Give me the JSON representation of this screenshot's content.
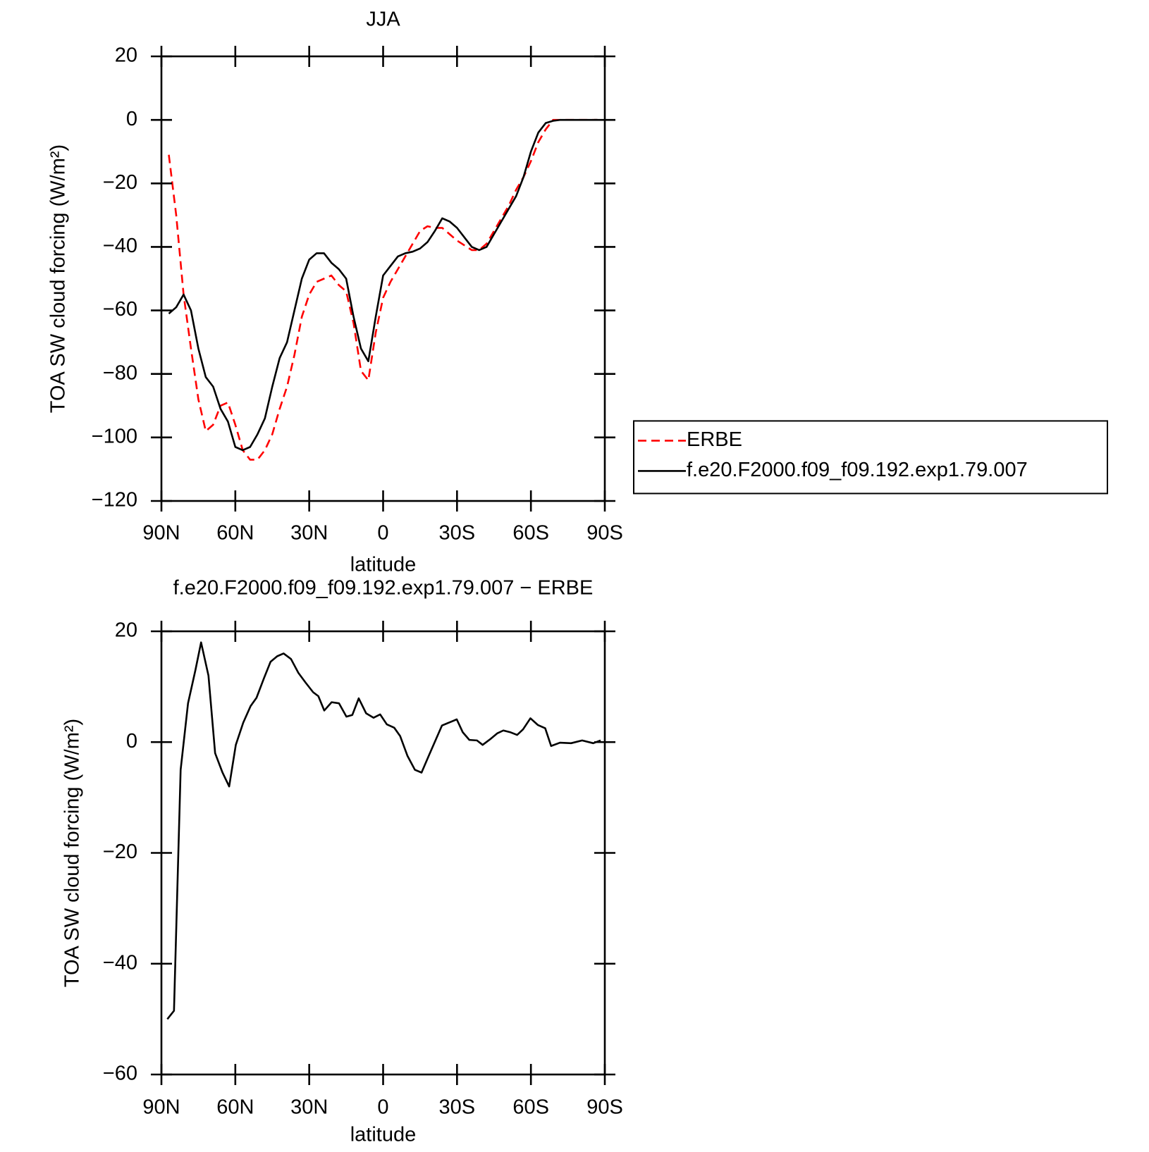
{
  "chart_data": [
    {
      "type": "line",
      "title": "JJA",
      "xlabel": "latitude",
      "ylabel": "TOA SW cloud forcing (W/m²)",
      "xlim": [
        90,
        -90
      ],
      "xticks": [
        {
          "value": 90,
          "label": "90N"
        },
        {
          "value": 60,
          "label": "60N"
        },
        {
          "value": 30,
          "label": "30N"
        },
        0,
        {
          "value": -30,
          "label": "30S"
        },
        {
          "value": -60,
          "label": "60S"
        },
        {
          "value": -90,
          "label": "90S"
        }
      ],
      "ylim": [
        -120,
        20
      ],
      "yticks": [
        20,
        0,
        {
          "value": -20,
          "label": "−20"
        },
        {
          "value": -40,
          "label": "−40"
        },
        {
          "value": -60,
          "label": "−60"
        },
        {
          "value": -80,
          "label": "−80"
        },
        {
          "value": -100,
          "label": "−100"
        },
        {
          "value": -120,
          "label": "−120"
        }
      ],
      "legend": "right",
      "x": [
        87,
        84,
        81,
        78,
        75,
        72,
        69,
        66,
        63,
        60,
        57,
        54,
        51,
        48,
        45,
        42,
        39,
        36,
        33,
        30,
        27,
        24,
        21,
        18,
        15,
        12,
        9,
        6,
        3,
        0,
        -3,
        -6,
        -9,
        -12,
        -15,
        -18,
        -21,
        -24,
        -27,
        -30,
        -33,
        -36,
        -39,
        -42,
        -45,
        -48,
        -51,
        -54,
        -57,
        -60,
        -63,
        -66,
        -69,
        -72,
        -75,
        -78,
        -81,
        -84,
        -87
      ],
      "series": [
        {
          "name": "ERBE",
          "color": "#ff0000",
          "line_style": "dashed",
          "values": [
            -11,
            -30,
            -55,
            -72,
            -88,
            -98,
            -96,
            -90,
            -89,
            -96,
            -104,
            -107,
            -107,
            -104,
            -99,
            -91,
            -84,
            -74,
            -62,
            -55,
            -51,
            -50,
            -49,
            -52,
            -54,
            -64,
            -79,
            -82,
            -67,
            -56,
            -51,
            -47,
            -43,
            -39,
            -35,
            -33.5,
            -34,
            -34,
            -36,
            -38,
            -39.5,
            -41,
            -41,
            -39,
            -35,
            -31,
            -27,
            -22,
            -18,
            -13,
            -7,
            -3,
            0,
            0,
            0,
            0,
            0,
            0,
            0
          ]
        },
        {
          "name": "f.e20.F2000.f09_f09.192.exp1.79.007",
          "color": "#000000",
          "line_style": "solid",
          "values": [
            -61,
            -59,
            -55,
            -60,
            -72,
            -81,
            -84,
            -91,
            -95,
            -103,
            -104,
            -103,
            -99,
            -94,
            -84,
            -75,
            -70,
            -60,
            -50,
            -44,
            -42,
            -42,
            -45,
            -47,
            -50,
            -62,
            -72,
            -76,
            -62,
            -49,
            -46,
            -43,
            -42,
            -41.5,
            -40.5,
            -38.5,
            -35,
            -31,
            -32,
            -34,
            -37,
            -40,
            -41,
            -40,
            -36,
            -32,
            -28,
            -24,
            -18,
            -10,
            -4,
            -1,
            -0.3,
            0,
            0,
            0,
            0,
            0,
            0
          ]
        }
      ]
    },
    {
      "type": "line",
      "title": "f.e20.F2000.f09_f09.192.exp1.79.007 − ERBE",
      "xlabel": "latitude",
      "ylabel": "TOA SW cloud forcing (W/m²)",
      "xlim": [
        90,
        -90
      ],
      "xticks": [
        {
          "value": 90,
          "label": "90N"
        },
        {
          "value": 60,
          "label": "60N"
        },
        {
          "value": 30,
          "label": "30N"
        },
        0,
        {
          "value": -30,
          "label": "30S"
        },
        {
          "value": -60,
          "label": "60S"
        },
        {
          "value": -90,
          "label": "90S"
        }
      ],
      "ylim": [
        -60,
        20
      ],
      "yticks": [
        20,
        0,
        {
          "value": -20,
          "label": "−20"
        },
        {
          "value": -40,
          "label": "−40"
        },
        {
          "value": -60,
          "label": "−60"
        }
      ],
      "x": [
        87.6,
        84.9,
        82.2,
        79.2,
        76.2,
        73.9,
        70.9,
        68.2,
        65.2,
        62.5,
        59.8,
        56.8,
        53.8,
        51.4,
        48.4,
        45.7,
        43.0,
        40.4,
        37.4,
        34.4,
        31.4,
        28.4,
        26.3,
        23.9,
        20.9,
        17.9,
        14.9,
        12.5,
        9.9,
        6.9,
        3.9,
        1.2,
        -1.5,
        -4.5,
        -6.9,
        -9.9,
        -12.9,
        -15.6,
        -18.5,
        -23.9,
        -29.9,
        -32.3,
        -35.0,
        -38.1,
        -40.4,
        -43.4,
        -46.4,
        -48.8,
        -51.5,
        -54.4,
        -56.8,
        -59.8,
        -62.8,
        -65.8,
        -68.2,
        -71.8,
        -76.3,
        -80.8,
        -85.3,
        -88.3
      ],
      "series": [
        {
          "color": "#000000",
          "line_style": "solid",
          "values": [
            -50,
            -48.5,
            -5,
            7,
            13,
            18,
            12,
            -2,
            -5.5,
            -8,
            -0.5,
            3.5,
            6.5,
            8,
            11.5,
            14.5,
            15.5,
            16,
            15,
            12.5,
            10.7,
            9,
            8.3,
            5.7,
            7.2,
            7,
            4.6,
            4.9,
            7.9,
            5.2,
            4.4,
            5,
            3.2,
            2.6,
            1.1,
            -2.5,
            -5,
            -5.5,
            -2.5,
            3,
            4.1,
            1.8,
            0.4,
            0.3,
            -0.5,
            0.5,
            1.6,
            2.1,
            1.8,
            1.3,
            2.3,
            4.3,
            3.1,
            2.5,
            -0.7,
            -0.1,
            -0.2,
            0.3,
            -0.2,
            0.3
          ]
        }
      ]
    }
  ]
}
